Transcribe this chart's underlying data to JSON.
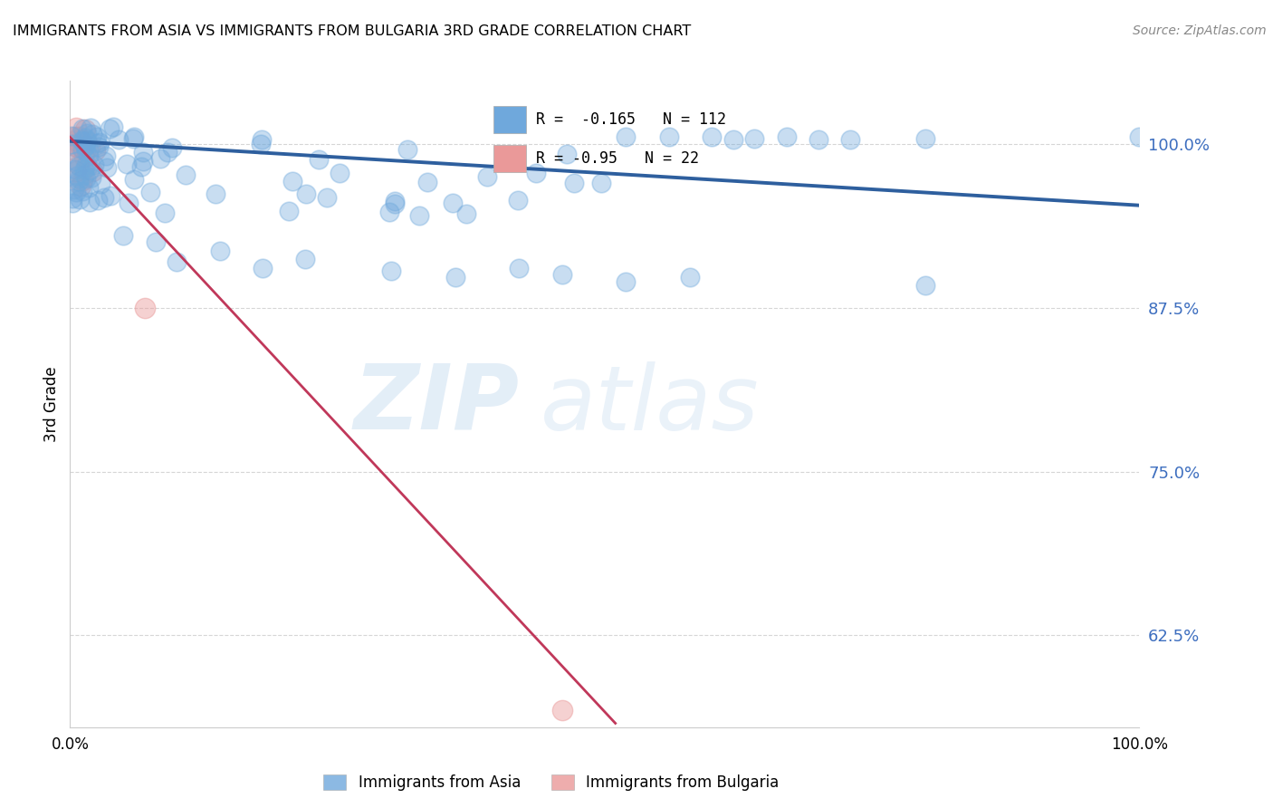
{
  "title": "IMMIGRANTS FROM ASIA VS IMMIGRANTS FROM BULGARIA 3RD GRADE CORRELATION CHART",
  "source": "Source: ZipAtlas.com",
  "ylabel": "3rd Grade",
  "legend_asia": "Immigrants from Asia",
  "legend_bulgaria": "Immigrants from Bulgaria",
  "R_asia": -0.165,
  "N_asia": 112,
  "R_bulgaria": -0.95,
  "N_bulgaria": 22,
  "color_asia": "#6fa8dc",
  "color_bulgaria": "#ea9999",
  "color_asia_line": "#2e5f9e",
  "color_bulgaria_line": "#c0385a",
  "figsize": [
    14.06,
    8.92
  ],
  "dpi": 100,
  "xlim": [
    0.0,
    1.0
  ],
  "ylim_min": 0.555,
  "ylim_max": 1.048,
  "ytick_values": [
    1.0,
    0.875,
    0.75,
    0.625
  ],
  "ytick_labels": [
    "100.0%",
    "87.5%",
    "75.0%",
    "62.5%"
  ],
  "xtick_values": [
    0.0,
    1.0
  ],
  "xtick_labels": [
    "0.0%",
    "100.0%"
  ],
  "asia_line_x0": 0.0,
  "asia_line_y0": 1.002,
  "asia_line_x1": 1.0,
  "asia_line_y1": 0.953,
  "bulg_line_x0": 0.0,
  "bulg_line_y0": 1.005,
  "bulg_line_x1": 0.51,
  "bulg_line_y1": 0.558,
  "watermark_zip": "ZIP",
  "watermark_atlas": "atlas"
}
